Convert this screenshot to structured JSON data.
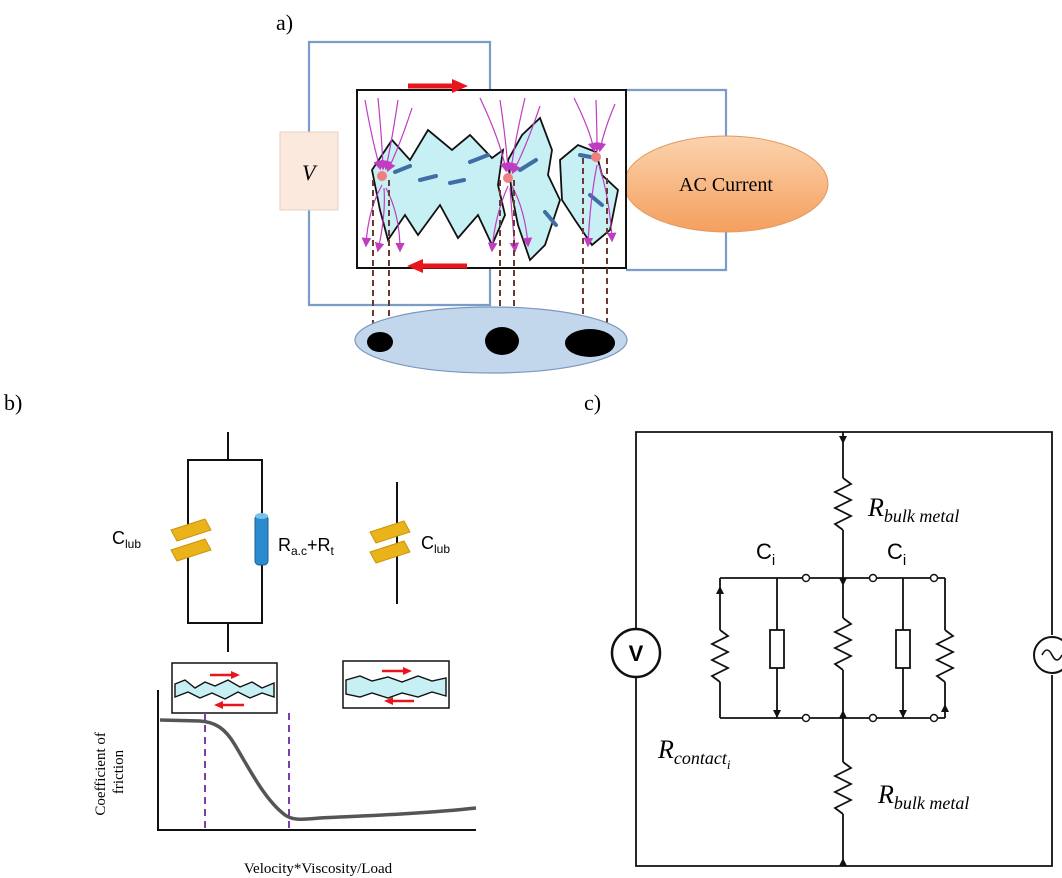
{
  "panel_a": {
    "label": "a)",
    "voltage_label": "V",
    "current_label": "AC Current"
  },
  "panel_b": {
    "label": "b)",
    "cap_label_left_main": "C",
    "cap_label_left_sub": "lub",
    "resistor_label_r1": "R",
    "resistor_label_r1_sub": "a.c",
    "resistor_label_plus": "+R",
    "resistor_label_r2_sub": "t",
    "cap_label_right_main": "C",
    "cap_label_right_sub": "lub",
    "y_axis_label_line1": "Coefficient of",
    "y_axis_label_line2": "friction",
    "x_axis_label": "Velocity*Viscosity/Load"
  },
  "panel_c": {
    "label": "c)",
    "bulk_top_main": "R",
    "bulk_top_sub": "bulk metal",
    "cap_left_main": "C",
    "cap_left_sub": "i",
    "cap_right_main": "C",
    "cap_right_sub": "i",
    "voltmeter_symbol": "V",
    "contact_main": "R",
    "contact_sub": "contact",
    "contact_subsub": "i",
    "bulk_bottom_main": "R",
    "bulk_bottom_sub": "bulk metal"
  },
  "colors": {
    "wire_blue": "#7a9cc8",
    "arrow_red": "#e8161c",
    "lubricant": "#c6f0f4",
    "field_magenta": "#c03cc0",
    "dash_brown": "#6b3a32",
    "cap_gold": "#e9b319",
    "resistor_blue": "#2a8ccf",
    "curve_gray": "#555555",
    "vline_purple": "#7b3fa8",
    "ac_fill": "#f8b27a",
    "ellipse_fill": "#c2d7ec"
  }
}
